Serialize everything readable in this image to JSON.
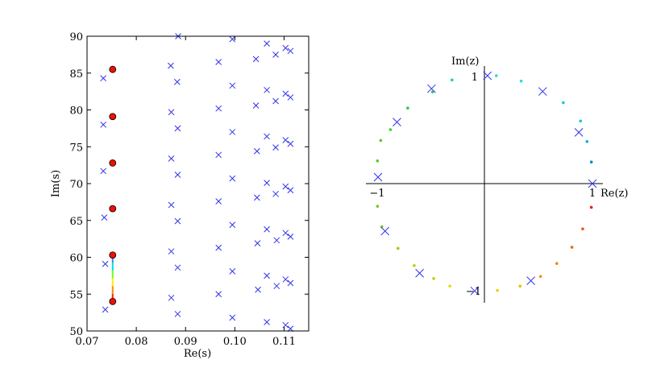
{
  "chart_data": [
    {
      "type": "scatter",
      "xlabel": "Re(s)",
      "ylabel": "Im(s)",
      "xlim": [
        0.07,
        0.115
      ],
      "ylim": [
        50,
        90
      ],
      "xticks": [
        "0.07",
        "0.08",
        "0.09",
        "0.10",
        "0.11"
      ],
      "yticks": [
        "50",
        "55",
        "60",
        "65",
        "70",
        "75",
        "80",
        "85",
        "90"
      ],
      "grid": false,
      "series": [
        {
          "marker": "x",
          "color": "#3333ee",
          "points": [
            [
              0.0733,
              84.3
            ],
            [
              0.0733,
              78.0
            ],
            [
              0.0733,
              71.7
            ],
            [
              0.0735,
              65.4
            ],
            [
              0.0737,
              59.1
            ],
            [
              0.0737,
              52.9
            ],
            [
              0.087,
              86.0
            ],
            [
              0.0883,
              83.8
            ],
            [
              0.0871,
              79.7
            ],
            [
              0.0884,
              77.5
            ],
            [
              0.0871,
              73.4
            ],
            [
              0.0884,
              71.2
            ],
            [
              0.0871,
              67.1
            ],
            [
              0.0884,
              64.9
            ],
            [
              0.0871,
              60.8
            ],
            [
              0.0884,
              58.6
            ],
            [
              0.0871,
              54.5
            ],
            [
              0.0884,
              52.3
            ],
            [
              0.0885,
              90.0
            ],
            [
              0.0967,
              86.5
            ],
            [
              0.0967,
              80.2
            ],
            [
              0.0967,
              73.9
            ],
            [
              0.0967,
              67.6
            ],
            [
              0.0967,
              61.3
            ],
            [
              0.0967,
              55.0
            ],
            [
              0.0995,
              89.6
            ],
            [
              0.0995,
              83.3
            ],
            [
              0.0995,
              77.0
            ],
            [
              0.0995,
              70.7
            ],
            [
              0.0995,
              64.4
            ],
            [
              0.0995,
              58.1
            ],
            [
              0.0995,
              51.8
            ],
            [
              0.1043,
              86.9
            ],
            [
              0.1043,
              80.6
            ],
            [
              0.1045,
              74.4
            ],
            [
              0.1045,
              68.1
            ],
            [
              0.1046,
              61.9
            ],
            [
              0.1047,
              55.6
            ],
            [
              0.1065,
              89.0
            ],
            [
              0.1065,
              82.7
            ],
            [
              0.1065,
              76.4
            ],
            [
              0.1065,
              70.1
            ],
            [
              0.1065,
              63.8
            ],
            [
              0.1065,
              57.5
            ],
            [
              0.1065,
              51.2
            ],
            [
              0.1083,
              87.5
            ],
            [
              0.1083,
              81.2
            ],
            [
              0.1083,
              74.9
            ],
            [
              0.1083,
              68.6
            ],
            [
              0.1085,
              62.3
            ],
            [
              0.1085,
              56.1
            ],
            [
              0.1103,
              88.4
            ],
            [
              0.1103,
              82.2
            ],
            [
              0.1103,
              75.9
            ],
            [
              0.1103,
              69.6
            ],
            [
              0.1103,
              63.3
            ],
            [
              0.1103,
              57.0
            ],
            [
              0.1103,
              50.8
            ],
            [
              0.1113,
              88.0
            ],
            [
              0.1113,
              81.7
            ],
            [
              0.1113,
              75.4
            ],
            [
              0.1113,
              69.1
            ],
            [
              0.1113,
              62.8
            ],
            [
              0.1113,
              56.5
            ],
            [
              0.1113,
              50.3
            ]
          ]
        },
        {
          "marker": "o",
          "color": "#ee1100",
          "points": [
            [
              0.0752,
              85.5
            ],
            [
              0.0752,
              79.1
            ],
            [
              0.0752,
              72.8
            ],
            [
              0.0752,
              66.6
            ],
            [
              0.0752,
              60.3
            ],
            [
              0.0752,
              54.0
            ]
          ]
        }
      ],
      "colored_segment": {
        "x": 0.0752,
        "from": 54.0,
        "to": 60.3,
        "colors": [
          "#ff2200",
          "#ff8800",
          "#ffee00",
          "#66ff33",
          "#00dddd",
          "#3388ff"
        ]
      }
    },
    {
      "type": "scatter",
      "xlabel": "Re(z)",
      "ylabel": "Im(z)",
      "xlim": [
        -1.1,
        1.1
      ],
      "ylim": [
        -1.1,
        1.1
      ],
      "tick_labels": {
        "x_neg": "−1",
        "x_pos": "1",
        "y_pos": "1",
        "y_neg": "−1"
      },
      "grid": false,
      "series": [
        {
          "marker": "x",
          "color": "#3333ee",
          "points": [
            [
              1.0,
              0.0
            ],
            [
              0.874,
              0.475
            ],
            [
              0.539,
              0.854
            ],
            [
              0.028,
              1.0
            ],
            [
              -0.49,
              0.88
            ],
            [
              -0.81,
              0.57
            ],
            [
              -0.985,
              0.06
            ],
            [
              -0.92,
              -0.44
            ],
            [
              -0.6,
              -0.83
            ],
            [
              -0.09,
              -0.995
            ],
            [
              0.43,
              -0.9
            ]
          ]
        },
        {
          "marker": "dot",
          "points": [
            {
              "x": 0.99,
              "y": 0.2,
              "color": "#1188cc"
            },
            {
              "x": 0.95,
              "y": 0.39,
              "color": "#11aadd"
            },
            {
              "x": 0.89,
              "y": 0.58,
              "color": "#00ccdd"
            },
            {
              "x": 0.73,
              "y": 0.75,
              "color": "#00ccdd"
            },
            {
              "x": 0.34,
              "y": 0.95,
              "color": "#22dddd"
            },
            {
              "x": 0.11,
              "y": 1.0,
              "color": "#22ddcc"
            },
            {
              "x": -0.3,
              "y": 0.96,
              "color": "#00ddaa"
            },
            {
              "x": -0.48,
              "y": 0.85,
              "color": "#22cc55"
            },
            {
              "x": -0.71,
              "y": 0.7,
              "color": "#33cc44"
            },
            {
              "x": -0.87,
              "y": 0.5,
              "color": "#44cc33"
            },
            {
              "x": -0.96,
              "y": 0.4,
              "color": "#55cc22"
            },
            {
              "x": -0.99,
              "y": 0.21,
              "color": "#55cc22"
            },
            {
              "x": -0.99,
              "y": -0.21,
              "color": "#66cc22"
            },
            {
              "x": -0.95,
              "y": -0.4,
              "color": "#77cc22"
            },
            {
              "x": -0.8,
              "y": -0.6,
              "color": "#99cc11"
            },
            {
              "x": -0.65,
              "y": -0.76,
              "color": "#bbcc11"
            },
            {
              "x": -0.47,
              "y": -0.88,
              "color": "#cccc00"
            },
            {
              "x": -0.32,
              "y": -0.95,
              "color": "#dddd00"
            },
            {
              "x": 0.12,
              "y": -0.99,
              "color": "#eecc00"
            },
            {
              "x": 0.33,
              "y": -0.95,
              "color": "#eebb00"
            },
            {
              "x": 0.52,
              "y": -0.86,
              "color": "#ee9900"
            },
            {
              "x": 0.67,
              "y": -0.74,
              "color": "#ee8800"
            },
            {
              "x": 0.81,
              "y": -0.59,
              "color": "#ee6600"
            },
            {
              "x": 0.91,
              "y": -0.42,
              "color": "#ee5500"
            },
            {
              "x": 0.99,
              "y": -0.22,
              "color": "#ee2200"
            }
          ]
        }
      ]
    }
  ]
}
